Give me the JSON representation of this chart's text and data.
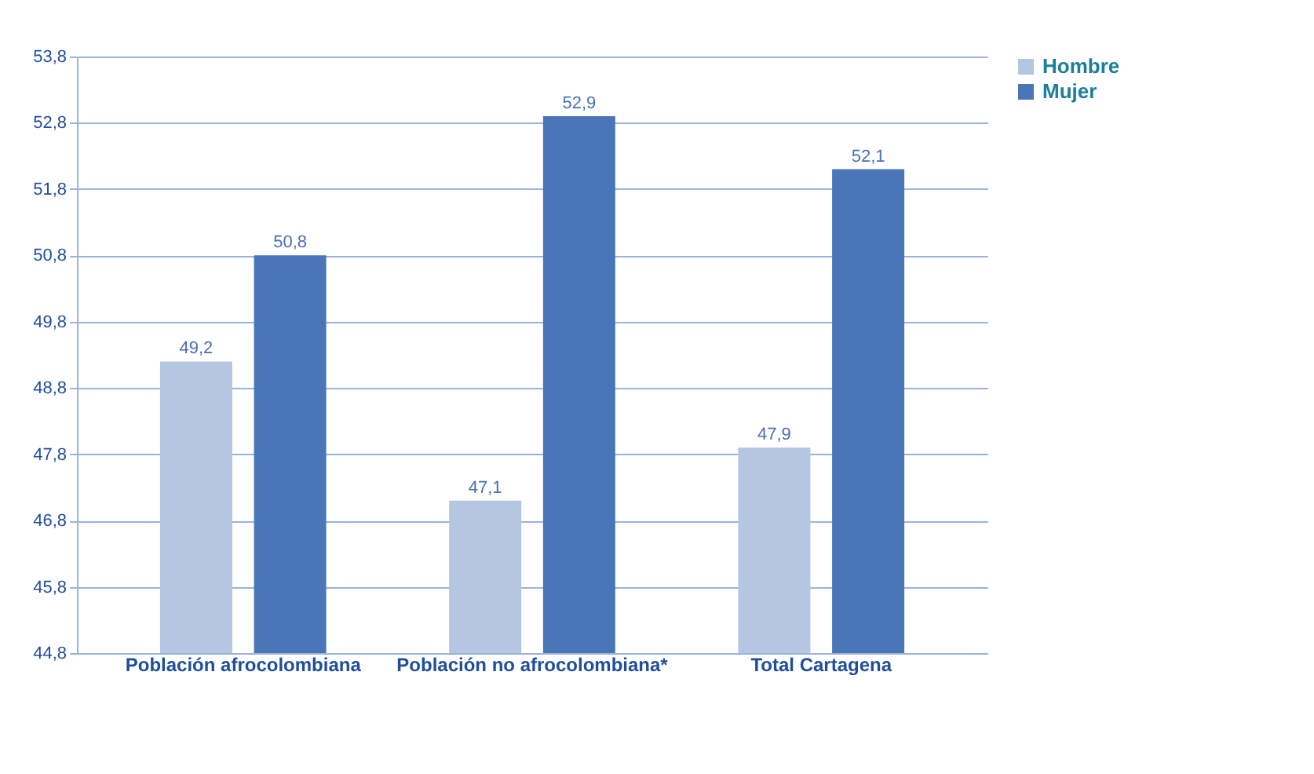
{
  "chart_data": {
    "type": "bar",
    "categories": [
      "Población afrocolombiana",
      "Población no afrocolombiana*",
      "Total Cartagena"
    ],
    "series": [
      {
        "name": "Hombre",
        "color": "#b4c6e2",
        "values": [
          49.2,
          47.1,
          47.9
        ],
        "value_labels": [
          "49,2",
          "47,1",
          "47,9"
        ]
      },
      {
        "name": "Mujer",
        "color": "#4a76b8",
        "values": [
          50.8,
          52.9,
          52.1
        ],
        "value_labels": [
          "50,8",
          "52,9",
          "52,1"
        ]
      }
    ],
    "ylim": [
      44.8,
      53.8
    ],
    "yticks": [
      {
        "value": 44.8,
        "label": "44,8"
      },
      {
        "value": 45.8,
        "label": "45,8"
      },
      {
        "value": 46.8,
        "label": "46,8"
      },
      {
        "value": 47.8,
        "label": "47,8"
      },
      {
        "value": 48.8,
        "label": "48,8"
      },
      {
        "value": 49.8,
        "label": "49,8"
      },
      {
        "value": 50.8,
        "label": "50,8"
      },
      {
        "value": 51.8,
        "label": "51,8"
      },
      {
        "value": 52.8,
        "label": "52,8"
      },
      {
        "value": 53.8,
        "label": "53,8"
      }
    ],
    "grid": "y",
    "legend": "right"
  }
}
